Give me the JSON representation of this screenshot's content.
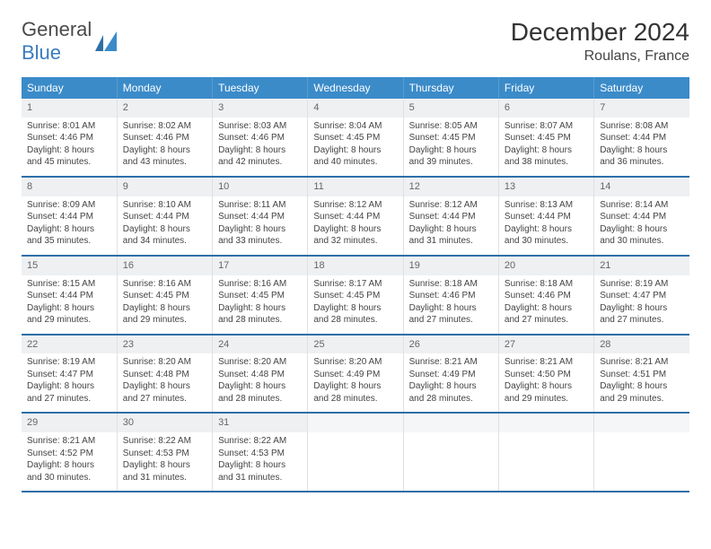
{
  "brand": {
    "part1": "General",
    "part2": "Blue"
  },
  "title": {
    "month": "December 2024",
    "location": "Roulans, France"
  },
  "colors": {
    "header_bg": "#3b8bc9",
    "header_text": "#ffffff",
    "daynum_bg": "#eef0f2",
    "row_divider": "#2f6fa8",
    "brand_blue": "#3b7bbf"
  },
  "weekdays": [
    "Sunday",
    "Monday",
    "Tuesday",
    "Wednesday",
    "Thursday",
    "Friday",
    "Saturday"
  ],
  "weeks": [
    [
      {
        "n": "1",
        "sr": "Sunrise: 8:01 AM",
        "ss": "Sunset: 4:46 PM",
        "d1": "Daylight: 8 hours",
        "d2": "and 45 minutes."
      },
      {
        "n": "2",
        "sr": "Sunrise: 8:02 AM",
        "ss": "Sunset: 4:46 PM",
        "d1": "Daylight: 8 hours",
        "d2": "and 43 minutes."
      },
      {
        "n": "3",
        "sr": "Sunrise: 8:03 AM",
        "ss": "Sunset: 4:46 PM",
        "d1": "Daylight: 8 hours",
        "d2": "and 42 minutes."
      },
      {
        "n": "4",
        "sr": "Sunrise: 8:04 AM",
        "ss": "Sunset: 4:45 PM",
        "d1": "Daylight: 8 hours",
        "d2": "and 40 minutes."
      },
      {
        "n": "5",
        "sr": "Sunrise: 8:05 AM",
        "ss": "Sunset: 4:45 PM",
        "d1": "Daylight: 8 hours",
        "d2": "and 39 minutes."
      },
      {
        "n": "6",
        "sr": "Sunrise: 8:07 AM",
        "ss": "Sunset: 4:45 PM",
        "d1": "Daylight: 8 hours",
        "d2": "and 38 minutes."
      },
      {
        "n": "7",
        "sr": "Sunrise: 8:08 AM",
        "ss": "Sunset: 4:44 PM",
        "d1": "Daylight: 8 hours",
        "d2": "and 36 minutes."
      }
    ],
    [
      {
        "n": "8",
        "sr": "Sunrise: 8:09 AM",
        "ss": "Sunset: 4:44 PM",
        "d1": "Daylight: 8 hours",
        "d2": "and 35 minutes."
      },
      {
        "n": "9",
        "sr": "Sunrise: 8:10 AM",
        "ss": "Sunset: 4:44 PM",
        "d1": "Daylight: 8 hours",
        "d2": "and 34 minutes."
      },
      {
        "n": "10",
        "sr": "Sunrise: 8:11 AM",
        "ss": "Sunset: 4:44 PM",
        "d1": "Daylight: 8 hours",
        "d2": "and 33 minutes."
      },
      {
        "n": "11",
        "sr": "Sunrise: 8:12 AM",
        "ss": "Sunset: 4:44 PM",
        "d1": "Daylight: 8 hours",
        "d2": "and 32 minutes."
      },
      {
        "n": "12",
        "sr": "Sunrise: 8:12 AM",
        "ss": "Sunset: 4:44 PM",
        "d1": "Daylight: 8 hours",
        "d2": "and 31 minutes."
      },
      {
        "n": "13",
        "sr": "Sunrise: 8:13 AM",
        "ss": "Sunset: 4:44 PM",
        "d1": "Daylight: 8 hours",
        "d2": "and 30 minutes."
      },
      {
        "n": "14",
        "sr": "Sunrise: 8:14 AM",
        "ss": "Sunset: 4:44 PM",
        "d1": "Daylight: 8 hours",
        "d2": "and 30 minutes."
      }
    ],
    [
      {
        "n": "15",
        "sr": "Sunrise: 8:15 AM",
        "ss": "Sunset: 4:44 PM",
        "d1": "Daylight: 8 hours",
        "d2": "and 29 minutes."
      },
      {
        "n": "16",
        "sr": "Sunrise: 8:16 AM",
        "ss": "Sunset: 4:45 PM",
        "d1": "Daylight: 8 hours",
        "d2": "and 29 minutes."
      },
      {
        "n": "17",
        "sr": "Sunrise: 8:16 AM",
        "ss": "Sunset: 4:45 PM",
        "d1": "Daylight: 8 hours",
        "d2": "and 28 minutes."
      },
      {
        "n": "18",
        "sr": "Sunrise: 8:17 AM",
        "ss": "Sunset: 4:45 PM",
        "d1": "Daylight: 8 hours",
        "d2": "and 28 minutes."
      },
      {
        "n": "19",
        "sr": "Sunrise: 8:18 AM",
        "ss": "Sunset: 4:46 PM",
        "d1": "Daylight: 8 hours",
        "d2": "and 27 minutes."
      },
      {
        "n": "20",
        "sr": "Sunrise: 8:18 AM",
        "ss": "Sunset: 4:46 PM",
        "d1": "Daylight: 8 hours",
        "d2": "and 27 minutes."
      },
      {
        "n": "21",
        "sr": "Sunrise: 8:19 AM",
        "ss": "Sunset: 4:47 PM",
        "d1": "Daylight: 8 hours",
        "d2": "and 27 minutes."
      }
    ],
    [
      {
        "n": "22",
        "sr": "Sunrise: 8:19 AM",
        "ss": "Sunset: 4:47 PM",
        "d1": "Daylight: 8 hours",
        "d2": "and 27 minutes."
      },
      {
        "n": "23",
        "sr": "Sunrise: 8:20 AM",
        "ss": "Sunset: 4:48 PM",
        "d1": "Daylight: 8 hours",
        "d2": "and 27 minutes."
      },
      {
        "n": "24",
        "sr": "Sunrise: 8:20 AM",
        "ss": "Sunset: 4:48 PM",
        "d1": "Daylight: 8 hours",
        "d2": "and 28 minutes."
      },
      {
        "n": "25",
        "sr": "Sunrise: 8:20 AM",
        "ss": "Sunset: 4:49 PM",
        "d1": "Daylight: 8 hours",
        "d2": "and 28 minutes."
      },
      {
        "n": "26",
        "sr": "Sunrise: 8:21 AM",
        "ss": "Sunset: 4:49 PM",
        "d1": "Daylight: 8 hours",
        "d2": "and 28 minutes."
      },
      {
        "n": "27",
        "sr": "Sunrise: 8:21 AM",
        "ss": "Sunset: 4:50 PM",
        "d1": "Daylight: 8 hours",
        "d2": "and 29 minutes."
      },
      {
        "n": "28",
        "sr": "Sunrise: 8:21 AM",
        "ss": "Sunset: 4:51 PM",
        "d1": "Daylight: 8 hours",
        "d2": "and 29 minutes."
      }
    ],
    [
      {
        "n": "29",
        "sr": "Sunrise: 8:21 AM",
        "ss": "Sunset: 4:52 PM",
        "d1": "Daylight: 8 hours",
        "d2": "and 30 minutes."
      },
      {
        "n": "30",
        "sr": "Sunrise: 8:22 AM",
        "ss": "Sunset: 4:53 PM",
        "d1": "Daylight: 8 hours",
        "d2": "and 31 minutes."
      },
      {
        "n": "31",
        "sr": "Sunrise: 8:22 AM",
        "ss": "Sunset: 4:53 PM",
        "d1": "Daylight: 8 hours",
        "d2": "and 31 minutes."
      },
      null,
      null,
      null,
      null
    ]
  ]
}
